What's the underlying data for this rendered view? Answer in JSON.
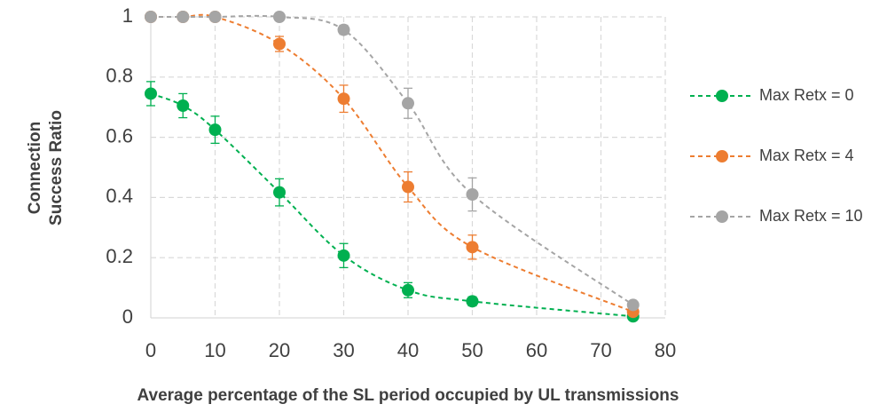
{
  "chart_data": {
    "type": "line",
    "x_label": "Average percentage of the SL period occupied by UL transmissions",
    "y_label": [
      "Connection",
      "Success Ratio"
    ],
    "x": [
      0,
      5,
      10,
      20,
      30,
      40,
      50,
      75
    ],
    "series": [
      {
        "name": "Max Retx = 0",
        "color": "#00b050",
        "values": [
          0.745,
          0.705,
          0.625,
          0.417,
          0.207,
          0.092,
          0.055,
          0.005
        ],
        "errors": [
          0.04,
          0.04,
          0.045,
          0.045,
          0.04,
          0.025,
          0.015,
          0.005
        ]
      },
      {
        "name": "Max Retx = 4",
        "color": "#ed7d31",
        "values": [
          1,
          1,
          1,
          0.91,
          0.728,
          0.435,
          0.235,
          0.02
        ],
        "errors": [
          0,
          0,
          0,
          0.025,
          0.045,
          0.05,
          0.04,
          0.01
        ]
      },
      {
        "name": "Max Retx = 10",
        "color": "#a5a5a5",
        "values": [
          1,
          1,
          1,
          1,
          0.957,
          0.713,
          0.41,
          0.043
        ],
        "errors": [
          0,
          0,
          0,
          0,
          0.015,
          0.05,
          0.055,
          0.01
        ]
      }
    ],
    "xlim": [
      0,
      80
    ],
    "xticks": [
      0,
      10,
      20,
      30,
      40,
      50,
      60,
      70,
      80
    ],
    "ylim": [
      0,
      1
    ],
    "yticks": [
      0,
      0.2,
      0.4,
      0.6,
      0.8,
      1
    ],
    "grid": true,
    "line_style": "dashed",
    "smooth": true,
    "legend": "right"
  }
}
